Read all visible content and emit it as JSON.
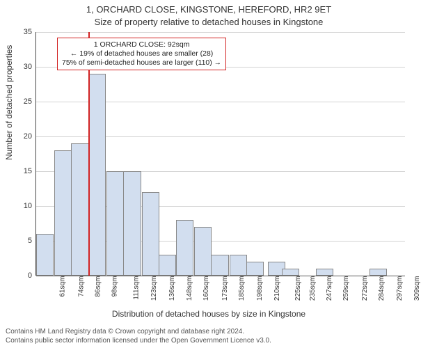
{
  "chart": {
    "type": "histogram",
    "title_line1": "1, ORCHARD CLOSE, KINGSTONE, HEREFORD, HR2 9ET",
    "title_line2": "Size of property relative to detached houses in Kingstone",
    "title_fontsize": 13,
    "ylabel": "Number of detached properties",
    "xlabel": "Distribution of detached houses by size in Kingstone",
    "label_fontsize": 12,
    "background_color": "#ffffff",
    "grid_color": "#808080",
    "grid_opacity": 0.35,
    "axis_color": "#444444",
    "ylim": [
      0,
      35
    ],
    "yticks": [
      0,
      5,
      10,
      15,
      20,
      25,
      30,
      35
    ],
    "xtick_labels": [
      "61sqm",
      "74sqm",
      "86sqm",
      "98sqm",
      "111sqm",
      "123sqm",
      "136sqm",
      "148sqm",
      "160sqm",
      "173sqm",
      "185sqm",
      "198sqm",
      "210sqm",
      "225sqm",
      "235sqm",
      "247sqm",
      "259sqm",
      "272sqm",
      "284sqm",
      "297sqm",
      "309sqm"
    ],
    "xtick_fontsize": 10,
    "bar_fill": "#d2deef",
    "bar_border": "#888888",
    "bars": [
      {
        "x": 61,
        "h": 6
      },
      {
        "x": 74,
        "h": 18
      },
      {
        "x": 86,
        "h": 19
      },
      {
        "x": 98,
        "h": 29
      },
      {
        "x": 111,
        "h": 15
      },
      {
        "x": 123,
        "h": 15
      },
      {
        "x": 136,
        "h": 12
      },
      {
        "x": 148,
        "h": 3
      },
      {
        "x": 160,
        "h": 8
      },
      {
        "x": 173,
        "h": 7
      },
      {
        "x": 185,
        "h": 3
      },
      {
        "x": 198,
        "h": 3
      },
      {
        "x": 210,
        "h": 2
      },
      {
        "x": 225,
        "h": 2
      },
      {
        "x": 235,
        "h": 1
      },
      {
        "x": 247,
        "h": 0
      },
      {
        "x": 259,
        "h": 1
      },
      {
        "x": 272,
        "h": 0
      },
      {
        "x": 284,
        "h": 0
      },
      {
        "x": 297,
        "h": 1
      },
      {
        "x": 309,
        "h": 0
      }
    ],
    "x_domain": [
      55,
      316
    ],
    "bar_width_sqm": 12.4,
    "marker": {
      "x_sqm": 92,
      "color": "#d22222",
      "callout_lines": [
        "1 ORCHARD CLOSE: 92sqm",
        "← 19% of detached houses are smaller (28)",
        "75% of semi-detached houses are larger (110) →"
      ],
      "callout_border": "#d22222",
      "callout_bg": "#ffffff",
      "callout_fontsize": 10.5
    }
  },
  "footer": {
    "line1": "Contains HM Land Registry data © Crown copyright and database right 2024.",
    "line2": "Contains public sector information licensed under the Open Government Licence v3.0.",
    "fontsize": 10,
    "color": "#555555"
  }
}
